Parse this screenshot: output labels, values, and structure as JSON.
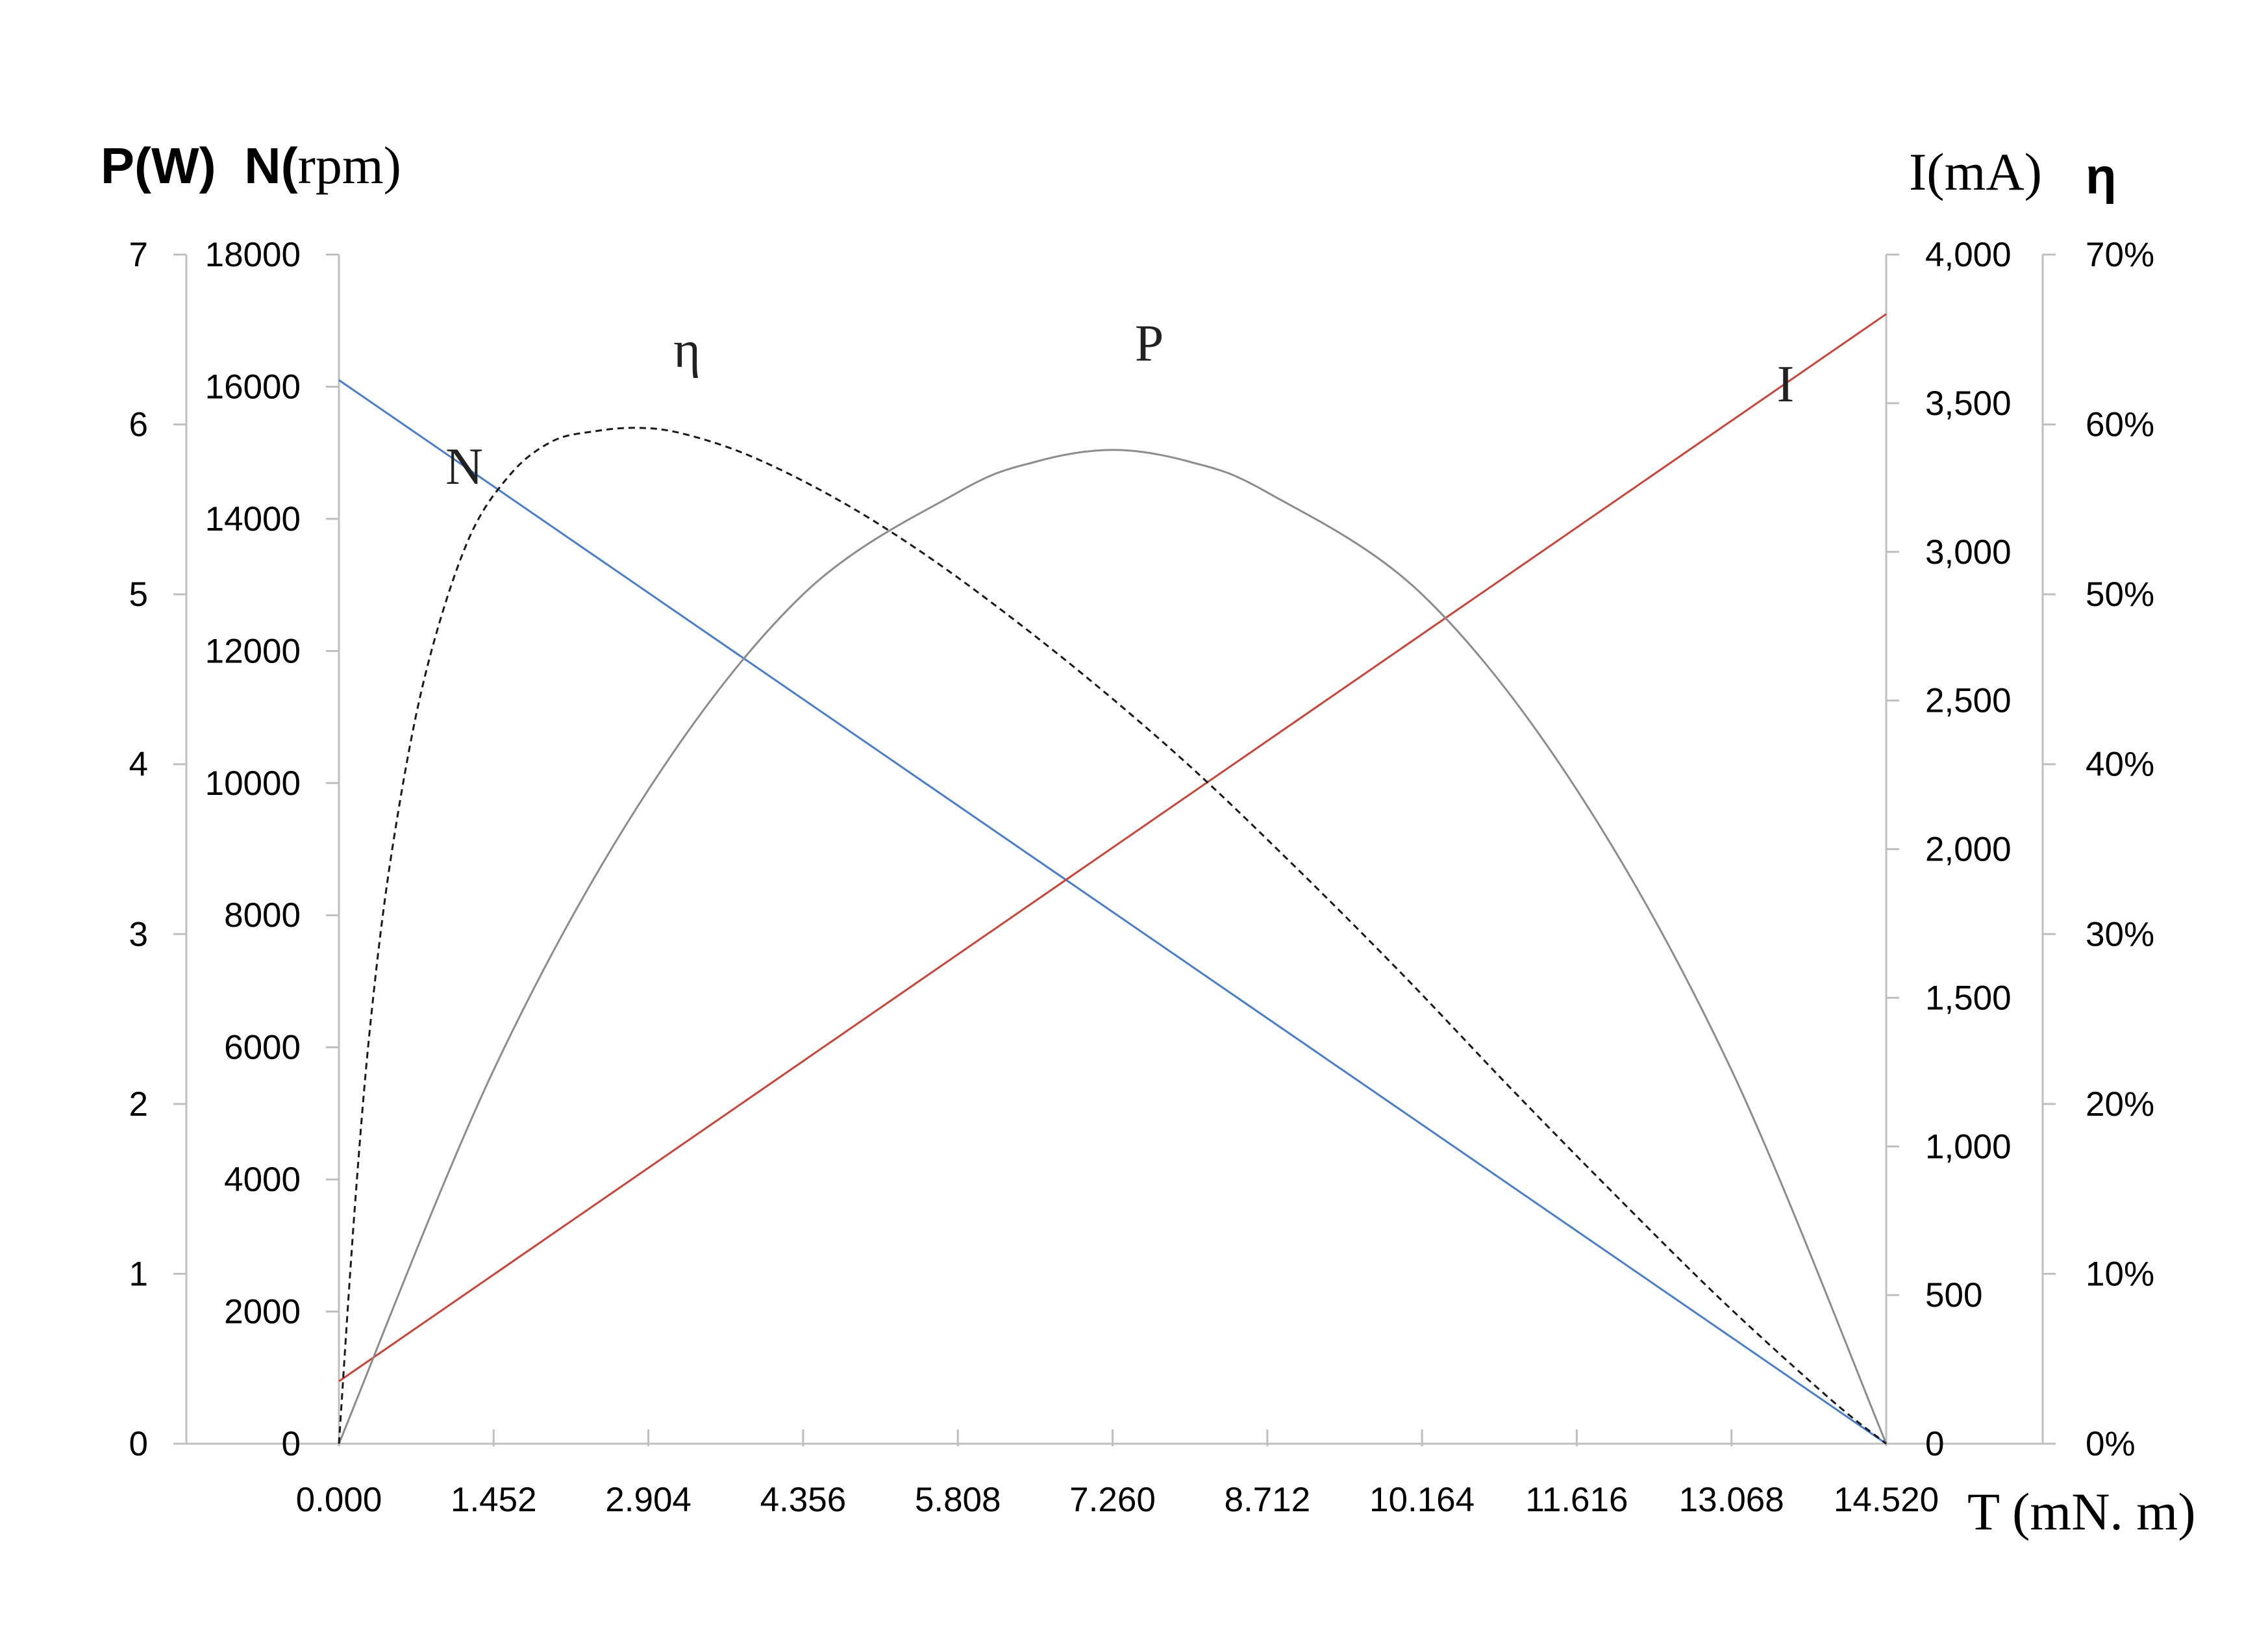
{
  "chart_data": {
    "type": "line",
    "x_axis": {
      "label": "T (mN. m)",
      "ticks": [
        "0.000",
        "1.452",
        "2.904",
        "4.356",
        "5.808",
        "7.260",
        "8.712",
        "10.164",
        "11.616",
        "13.068",
        "14.520"
      ],
      "range": [
        0,
        14.52
      ]
    },
    "y_axes": {
      "power": {
        "ticks": [
          "0",
          "1",
          "2",
          "3",
          "4",
          "5",
          "6",
          "7"
        ],
        "range": [
          0,
          7
        ]
      },
      "speed": {
        "ticks": [
          "0",
          "2000",
          "4000",
          "6000",
          "8000",
          "10000",
          "12000",
          "14000",
          "16000",
          "18000"
        ],
        "range": [
          0,
          18000
        ]
      },
      "current": {
        "ticks": [
          "0",
          "500",
          "1,000",
          "1,500",
          "2,000",
          "2,500",
          "3,000",
          "3,500",
          "4,000"
        ],
        "range": [
          0,
          4000
        ]
      },
      "efficiency": {
        "ticks": [
          "0%",
          "10%",
          "20%",
          "30%",
          "40%",
          "50%",
          "60%",
          "70%"
        ],
        "range": [
          0,
          70
        ]
      }
    },
    "left_title": {
      "p_part": "P(W)",
      "n_part": "N(",
      "n_unit": "rpm)"
    },
    "right_title": {
      "current": "I(mA)",
      "efficiency": "η"
    },
    "series": [
      {
        "name": "N",
        "axis": "speed",
        "color": "#4a7fc8",
        "style": "solid",
        "x": [
          0,
          14.52
        ],
        "y": [
          16100,
          0
        ]
      },
      {
        "name": "I",
        "axis": "current",
        "color": "#c8453a",
        "style": "solid",
        "x": [
          0,
          14.52
        ],
        "y": [
          210,
          3800
        ]
      },
      {
        "name": "P",
        "axis": "power",
        "color": "#8c8c8c",
        "style": "solid",
        "x": [
          0,
          1.452,
          2.904,
          4.356,
          5.808,
          6.534,
          7.26,
          7.986,
          8.712,
          10.164,
          11.616,
          13.068,
          14.52
        ],
        "y": [
          0,
          2.2,
          3.85,
          5.0,
          5.6,
          5.78,
          5.85,
          5.78,
          5.6,
          5.0,
          3.85,
          2.2,
          0
        ]
      },
      {
        "name": "η",
        "axis": "efficiency",
        "color": "#1a1a1a",
        "style": "dashed",
        "x": [
          0,
          0.15,
          0.3,
          0.5,
          0.8,
          1.2,
          1.6,
          2.0,
          2.4,
          2.8,
          3.2,
          3.8,
          4.5,
          5.2,
          6.0,
          7.0,
          8.0,
          9.0,
          10.0,
          11.0,
          12.0,
          13.0,
          14.0,
          14.52
        ],
        "y": [
          0,
          14,
          25,
          35,
          45,
          53,
          57,
          59,
          59.6,
          59.8,
          59.5,
          58.3,
          56.2,
          53.6,
          50.1,
          45.2,
          39.8,
          33.8,
          27.5,
          20.9,
          14.5,
          8.3,
          2.6,
          0
        ]
      }
    ],
    "curve_labels": [
      "N",
      "η",
      "P",
      "I"
    ]
  }
}
